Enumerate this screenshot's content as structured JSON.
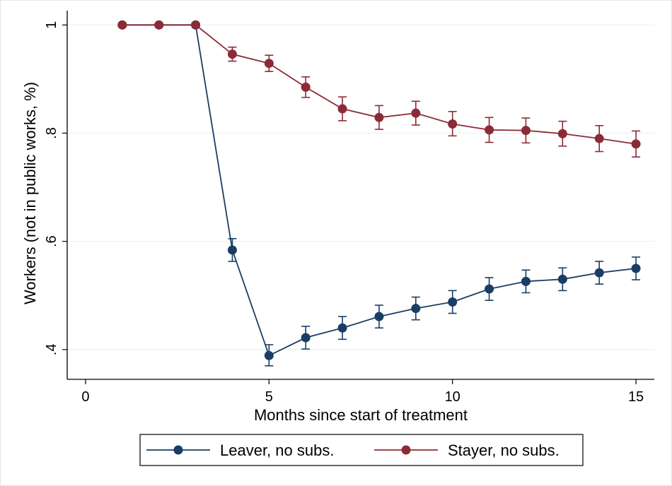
{
  "chart_data": {
    "type": "line",
    "xlabel": "Months since start of treatment",
    "ylabel": "Workers (not in public works, %)",
    "xlim": [
      -0.5,
      15.5
    ],
    "ylim": [
      0.345,
      1.02
    ],
    "xticks": [
      0,
      5,
      10,
      15
    ],
    "xtick_labels": [
      "0",
      "5",
      "10",
      "15"
    ],
    "yticks": [
      0.4,
      0.6,
      0.8,
      1
    ],
    "ytick_labels": [
      ".4",
      ".6",
      ".8",
      "1"
    ],
    "grid": true,
    "legend_position": "bottom",
    "series": [
      {
        "name": "Leaver, no subs.",
        "color": "#1a3d66",
        "x": [
          1,
          2,
          3,
          4,
          5,
          6,
          7,
          8,
          9,
          10,
          11,
          12,
          13,
          14,
          15
        ],
        "y": [
          1.0,
          1.0,
          1.0,
          0.584,
          0.389,
          0.422,
          0.44,
          0.461,
          0.476,
          0.488,
          0.512,
          0.526,
          0.53,
          0.542,
          0.55
        ],
        "ci_low": [
          null,
          null,
          null,
          0.563,
          0.37,
          0.401,
          0.419,
          0.44,
          0.455,
          0.467,
          0.491,
          0.505,
          0.509,
          0.521,
          0.529
        ],
        "ci_high": [
          null,
          null,
          null,
          0.605,
          0.409,
          0.443,
          0.461,
          0.482,
          0.497,
          0.509,
          0.533,
          0.547,
          0.551,
          0.563,
          0.571
        ]
      },
      {
        "name": "Stayer, no subs.",
        "color": "#8b2b36",
        "x": [
          1,
          2,
          3,
          4,
          5,
          6,
          7,
          8,
          9,
          10,
          11,
          12,
          13,
          14,
          15
        ],
        "y": [
          1.0,
          1.0,
          1.0,
          0.946,
          0.929,
          0.885,
          0.845,
          0.829,
          0.837,
          0.817,
          0.806,
          0.805,
          0.799,
          0.79,
          0.78
        ],
        "ci_low": [
          null,
          null,
          null,
          0.933,
          0.914,
          0.866,
          0.823,
          0.807,
          0.815,
          0.795,
          0.783,
          0.782,
          0.776,
          0.766,
          0.756
        ],
        "ci_high": [
          null,
          null,
          null,
          0.959,
          0.944,
          0.904,
          0.867,
          0.851,
          0.859,
          0.84,
          0.829,
          0.828,
          0.822,
          0.814,
          0.804
        ]
      }
    ]
  }
}
